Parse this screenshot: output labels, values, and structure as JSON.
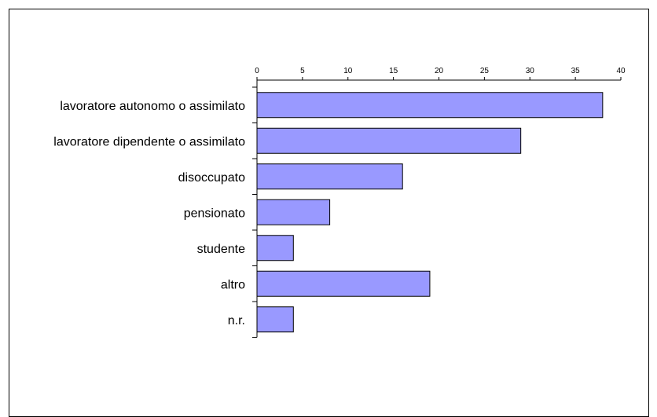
{
  "chart_data": {
    "type": "bar",
    "orientation": "horizontal",
    "title": "",
    "xlabel": "",
    "ylabel": "",
    "categories": [
      "lavoratore autonomo o assimilato",
      "lavoratore dipendente o assimilato",
      "disoccupato",
      "pensionato",
      "studente",
      "altro",
      "n.r."
    ],
    "values": [
      38,
      29,
      16,
      8,
      4,
      19,
      4
    ],
    "xlim": [
      0,
      40
    ],
    "x_ticks": [
      0,
      5,
      10,
      15,
      20,
      25,
      30,
      35,
      40
    ],
    "x_axis_position": "top",
    "grid": false,
    "legend": "none",
    "colors": {
      "bar_fill": "#9999FF",
      "bar_stroke": "#000000",
      "axis": "#000000"
    }
  }
}
